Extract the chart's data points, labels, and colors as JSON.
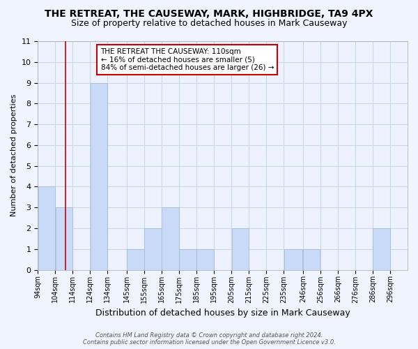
{
  "title": "THE RETREAT, THE CAUSEWAY, MARK, HIGHBRIDGE, TA9 4PX",
  "subtitle": "Size of property relative to detached houses in Mark Causeway",
  "xlabel": "Distribution of detached houses by size in Mark Causeway",
  "ylabel": "Number of detached properties",
  "bin_labels": [
    "94sqm",
    "104sqm",
    "114sqm",
    "124sqm",
    "134sqm",
    "145sqm",
    "155sqm",
    "165sqm",
    "175sqm",
    "185sqm",
    "195sqm",
    "205sqm",
    "215sqm",
    "225sqm",
    "235sqm",
    "246sqm",
    "256sqm",
    "266sqm",
    "276sqm",
    "286sqm",
    "296sqm"
  ],
  "bar_heights": [
    4,
    3,
    0,
    9,
    0,
    1,
    2,
    3,
    1,
    1,
    0,
    2,
    0,
    0,
    1,
    1,
    0,
    0,
    0,
    2,
    0
  ],
  "bar_color": "#c9daf8",
  "bar_edge_color": "#a0b4d0",
  "property_line_x": 110,
  "bin_edges": [
    94,
    104,
    114,
    124,
    134,
    145,
    155,
    165,
    175,
    185,
    195,
    205,
    215,
    225,
    235,
    246,
    256,
    266,
    276,
    286,
    296,
    306
  ],
  "ylim": [
    0,
    11
  ],
  "yticks": [
    0,
    1,
    2,
    3,
    4,
    5,
    6,
    7,
    8,
    9,
    10,
    11
  ],
  "annotation_title": "THE RETREAT THE CAUSEWAY: 110sqm",
  "annotation_line1": "← 16% of detached houses are smaller (5)",
  "annotation_line2": "84% of semi-detached houses are larger (26) →",
  "annotation_box_color": "#ffffff",
  "annotation_box_edge": "#cc0000",
  "footer1": "Contains HM Land Registry data © Crown copyright and database right 2024.",
  "footer2": "Contains public sector information licensed under the Open Government Licence v3.0.",
  "grid_color": "#c8d8e8",
  "background_color": "#f0f4ff",
  "plot_bg_color": "#eef2ff"
}
